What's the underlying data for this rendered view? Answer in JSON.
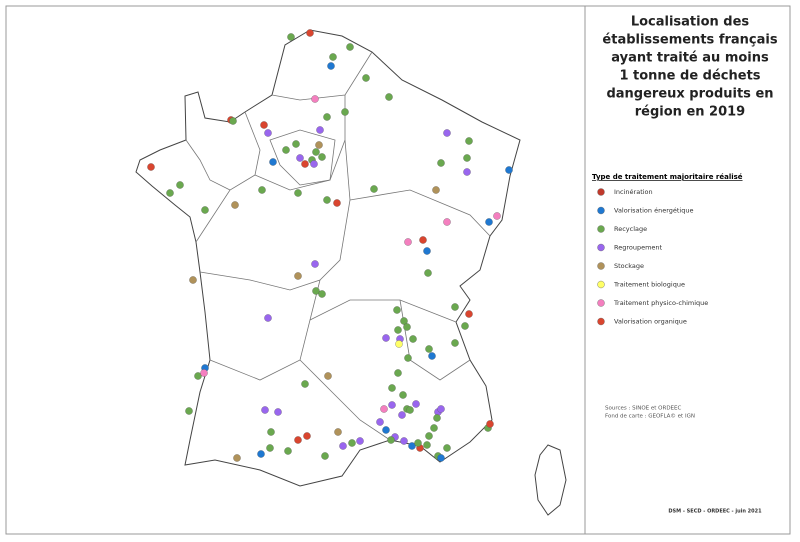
{
  "title": [
    "Localisation des",
    "établissements français",
    "ayant traité au moins",
    "1 tonne de déchets",
    "dangereux produits en",
    "région en 2019"
  ],
  "legend": {
    "title": "Type de traitement majoritaire réalisé",
    "items": [
      {
        "label": "Incinération",
        "color": "#c0392b"
      },
      {
        "label": "Valorisation énergétique",
        "color": "#1f78d1"
      },
      {
        "label": "Recyclage",
        "color": "#6aa84f"
      },
      {
        "label": "Regroupement",
        "color": "#9966ee"
      },
      {
        "label": "Stockage",
        "color": "#b0925a"
      },
      {
        "label": "Traitement biologique",
        "color": "#ffff66"
      },
      {
        "label": "Traitement physico-chimique",
        "color": "#f47fbf"
      },
      {
        "label": "Valorisation organique",
        "color": "#d9452f"
      }
    ]
  },
  "sources": [
    "Sources : SINOE et ORDEEC",
    "Fond de carte : GEOFLA© et IGN"
  ],
  "credit": "DSM - SECD - ORDEEC - juin 2021"
}
